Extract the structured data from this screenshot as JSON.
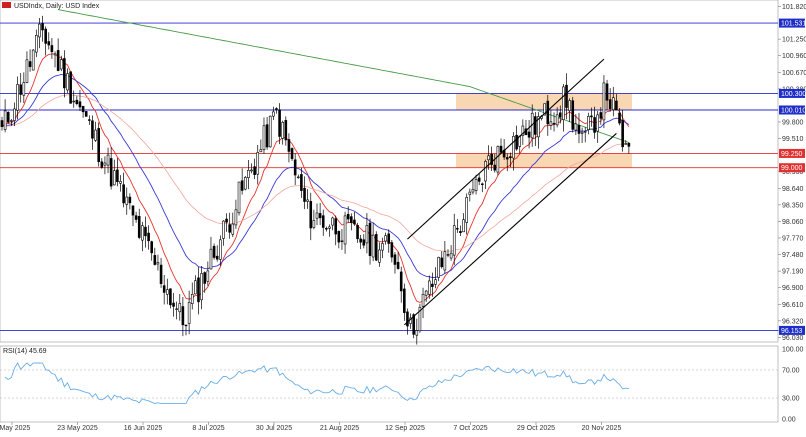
{
  "header": {
    "title": "USDIndx, Daily:  USD Index"
  },
  "rsi": {
    "label": "RSI(14) 45.69",
    "scale_ticks": [
      "100.00",
      "70.00",
      "30.00",
      "0.00"
    ],
    "levels": [
      70,
      30
    ]
  },
  "colors": {
    "bull_candle": "#ffffff",
    "bear_candle": "#000000",
    "ma_fast": "#e8342b",
    "ma_mid": "#3a3ad6",
    "ma_slow_light": "#f2a79c",
    "ma_long": "#4a9a4a",
    "support_line": "#2a2ad0",
    "resistance_zone": "#f7c99a",
    "channel": "#000000",
    "rsi_line": "#6aaee6",
    "tag_blue": "#1f2ec8",
    "tag_red": "#e03030"
  },
  "chart_data": {
    "type": "candlestick",
    "price_axis_ticks": [
      "101.820",
      "101.531",
      "101.250",
      "100.960",
      "100.670",
      "100.380",
      "100.300",
      "100.010",
      "99.800",
      "99.510",
      "99.250",
      "99.000",
      "98.930",
      "98.640",
      "98.350",
      "98.060",
      "97.770",
      "97.480",
      "97.190",
      "96.900",
      "96.610",
      "96.320",
      "96.150",
      "96.030"
    ],
    "ylim": [
      95.95,
      101.9
    ],
    "date_labels": [
      "1 May 2025",
      "23 May 2025",
      "16 Jun 2025",
      "8 Jul 2025",
      "30 Jul 2025",
      "21 Aug 2025",
      "12 Sep 2025",
      "7 Oct 2025",
      "29 Oct 2025",
      "20 Nov 2025"
    ],
    "horizontal_levels": [
      {
        "value": "101.531",
        "kind": "blue"
      },
      {
        "value": "100.300",
        "kind": "blue"
      },
      {
        "value": "100.010",
        "kind": "blue"
      },
      {
        "value": "99.250",
        "kind": "red"
      },
      {
        "value": "99.000",
        "kind": "red"
      },
      {
        "value": "96.153",
        "kind": "blue"
      }
    ],
    "zones": [
      {
        "from": 100.01,
        "to": 100.3
      },
      {
        "from": 99.0,
        "to": 99.25
      }
    ],
    "channel": {
      "upper": {
        "from": {
          "day": 130,
          "price": 97.75
        },
        "to": {
          "day": 193,
          "price": 100.9
        }
      },
      "lower": {
        "from": {
          "day": 129,
          "price": 96.25
        },
        "to": {
          "day": 197,
          "price": 99.6
        }
      }
    },
    "segments": [
      {
        "days": 14,
        "start": 99.5,
        "end": 101.4
      },
      {
        "days": 45,
        "start": 101.4,
        "end": 96.3
      },
      {
        "days": 30,
        "start": 96.3,
        "end": 99.95
      },
      {
        "days": 10,
        "start": 99.95,
        "end": 98.2
      },
      {
        "days": 28,
        "start": 98.2,
        "end": 97.5
      },
      {
        "days": 5,
        "start": 97.5,
        "end": 96.15
      },
      {
        "days": 25,
        "start": 96.15,
        "end": 99.1
      },
      {
        "days": 25,
        "start": 99.1,
        "end": 100.2
      },
      {
        "days": 5,
        "start": 100.2,
        "end": 99.4
      },
      {
        "days": 8,
        "start": 99.4,
        "end": 100.35
      },
      {
        "days": 7,
        "start": 100.35,
        "end": 99.12
      }
    ]
  }
}
